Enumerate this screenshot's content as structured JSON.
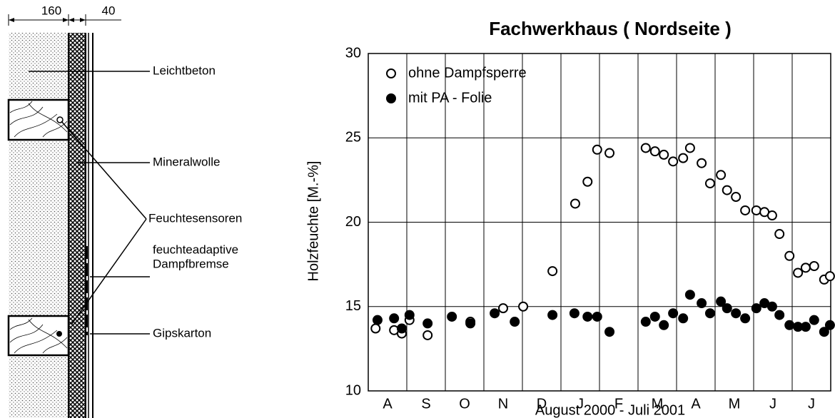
{
  "diagram": {
    "dimensions": [
      "160",
      "40"
    ],
    "labels": [
      "Leichtbeton",
      "Mineralwolle",
      "Feuchtesensoren",
      "feuchteadaptive",
      "Dampfbremse",
      "Gipskarton"
    ]
  },
  "chart_data": {
    "type": "scatter",
    "title": "Fachwerkhaus ( Nordseite )",
    "y_label": "Holzfeuchte [M.-%]",
    "x_label": "August 2000 - Juli 2001",
    "categories": [
      "A",
      "S",
      "O",
      "N",
      "D",
      "J",
      "F",
      "M",
      "A",
      "M",
      "J",
      "J"
    ],
    "xlim": [
      0,
      12
    ],
    "ylim": [
      10,
      30
    ],
    "yticks": [
      10,
      15,
      20,
      25,
      30
    ],
    "grid": true,
    "legend": "upper left",
    "series": [
      {
        "name": "ohne Dampfsperre",
        "color": "#000000",
        "marker": "open",
        "x": [
          0.19,
          0.67,
          0.87,
          1.07,
          1.54,
          2.65,
          3.5,
          4.02,
          4.78,
          5.37,
          5.69,
          5.94,
          6.26,
          7.2,
          7.44,
          7.67,
          7.91,
          8.17,
          8.35,
          8.65,
          8.87,
          9.15,
          9.31,
          9.54,
          9.78,
          10.07,
          10.28,
          10.48,
          10.67,
          10.93,
          11.15,
          11.35,
          11.57,
          11.83,
          11.98
        ],
        "values": [
          13.7,
          13.6,
          13.4,
          14.2,
          13.3,
          14.1,
          14.9,
          15.0,
          17.1,
          21.1,
          22.4,
          24.3,
          24.1,
          24.4,
          24.2,
          24.0,
          23.6,
          23.8,
          24.4,
          23.5,
          22.3,
          22.8,
          21.9,
          21.5,
          20.7,
          20.7,
          20.6,
          20.4,
          19.3,
          18.0,
          17.0,
          17.3,
          17.4,
          16.6,
          16.8
        ]
      },
      {
        "name": "mit PA - Folie",
        "color": "#000000",
        "marker": "filled",
        "x": [
          0.24,
          0.67,
          0.87,
          1.07,
          1.54,
          2.17,
          2.65,
          3.28,
          3.8,
          4.78,
          5.35,
          5.69,
          5.94,
          6.26,
          7.2,
          7.44,
          7.67,
          7.91,
          8.17,
          8.35,
          8.65,
          8.87,
          9.15,
          9.31,
          9.54,
          9.78,
          10.07,
          10.28,
          10.48,
          10.67,
          10.93,
          11.15,
          11.35,
          11.57,
          11.83,
          11.98
        ],
        "values": [
          14.2,
          14.3,
          13.7,
          14.5,
          14.0,
          14.4,
          14.0,
          14.6,
          14.1,
          14.5,
          14.6,
          14.4,
          14.4,
          13.5,
          14.1,
          14.4,
          13.9,
          14.6,
          14.3,
          15.7,
          15.2,
          14.6,
          15.3,
          14.9,
          14.6,
          14.3,
          14.9,
          15.2,
          15.0,
          14.5,
          13.9,
          13.8,
          13.8,
          14.2,
          13.5,
          13.9
        ]
      }
    ]
  }
}
